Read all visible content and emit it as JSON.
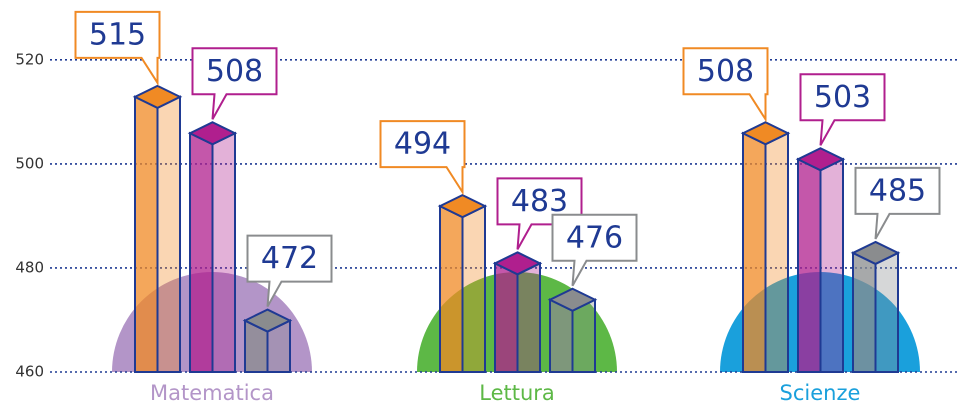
{
  "chart_data": {
    "type": "bar",
    "categories": [
      "Matematica",
      "Lettura",
      "Scienze"
    ],
    "category_colors": [
      "#b395c8",
      "#5db846",
      "#1aa0dc"
    ],
    "series": [
      {
        "color": "#f08a24",
        "values": [
          515,
          494,
          508
        ]
      },
      {
        "color": "#b01f8e",
        "values": [
          508,
          483,
          503
        ]
      },
      {
        "color": "#8a8c8e",
        "values": [
          472,
          476,
          485
        ]
      }
    ],
    "ylim": [
      460,
      531.5
    ],
    "yticks": [
      460,
      480,
      500,
      520
    ],
    "grid": true
  }
}
